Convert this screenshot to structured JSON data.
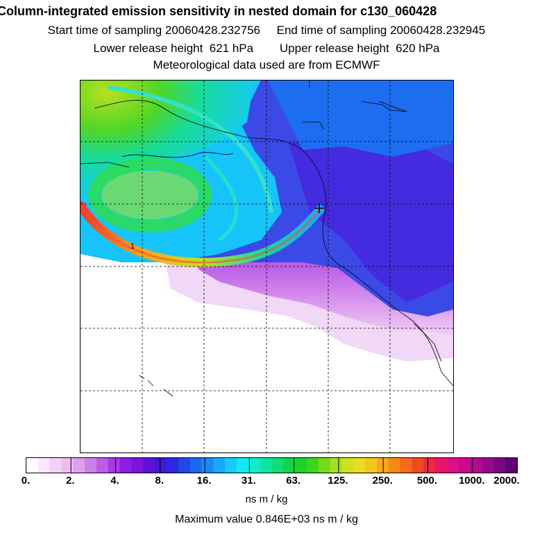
{
  "header": {
    "title": "Column-integrated emission sensitivity in nested domain for c130_060428",
    "sampling_line": "Start time of sampling 20060428.232756     End time of sampling 20060428.232945",
    "release_line": "Lower release height  621 hPa        Upper release height  620 hPa",
    "met_line": "Meteorological data used are from ECMWF"
  },
  "map": {
    "marker_label": "1"
  },
  "colorbar": {
    "tick_labels": [
      "0.",
      "2.",
      "4.",
      "8.",
      "16.",
      "31.",
      "63.",
      "125.",
      "250.",
      "500.",
      "1000.",
      "2000."
    ],
    "units": "ns m / kg",
    "colors": [
      "#ffffff",
      "#fbe8fb",
      "#f4d2f6",
      "#edbdf2",
      "#dca0ee",
      "#cd7fea",
      "#bd5de6",
      "#a83ae4",
      "#8f1fe0",
      "#7a16db",
      "#5d12d6",
      "#4016d8",
      "#2b28e0",
      "#2246e8",
      "#1d66ef",
      "#1a88f4",
      "#17aaf8",
      "#15ccfb",
      "#11e9f5",
      "#10ecd2",
      "#10e5a6",
      "#12dc76",
      "#14d54a",
      "#1ad22a",
      "#3fd51e",
      "#75da1e",
      "#a5df1f",
      "#d0e21f",
      "#e9dd1f",
      "#f3c51d",
      "#f7a81c",
      "#f8891b",
      "#f46a1f",
      "#ee4a25",
      "#ea2a43",
      "#e8156a",
      "#df0d86",
      "#cb0a8d",
      "#b3098e",
      "#98098a",
      "#7a0782",
      "#5c056e"
    ]
  },
  "footer": {
    "max_value": "Maximum value  0.846E+03 ns m / kg"
  }
}
